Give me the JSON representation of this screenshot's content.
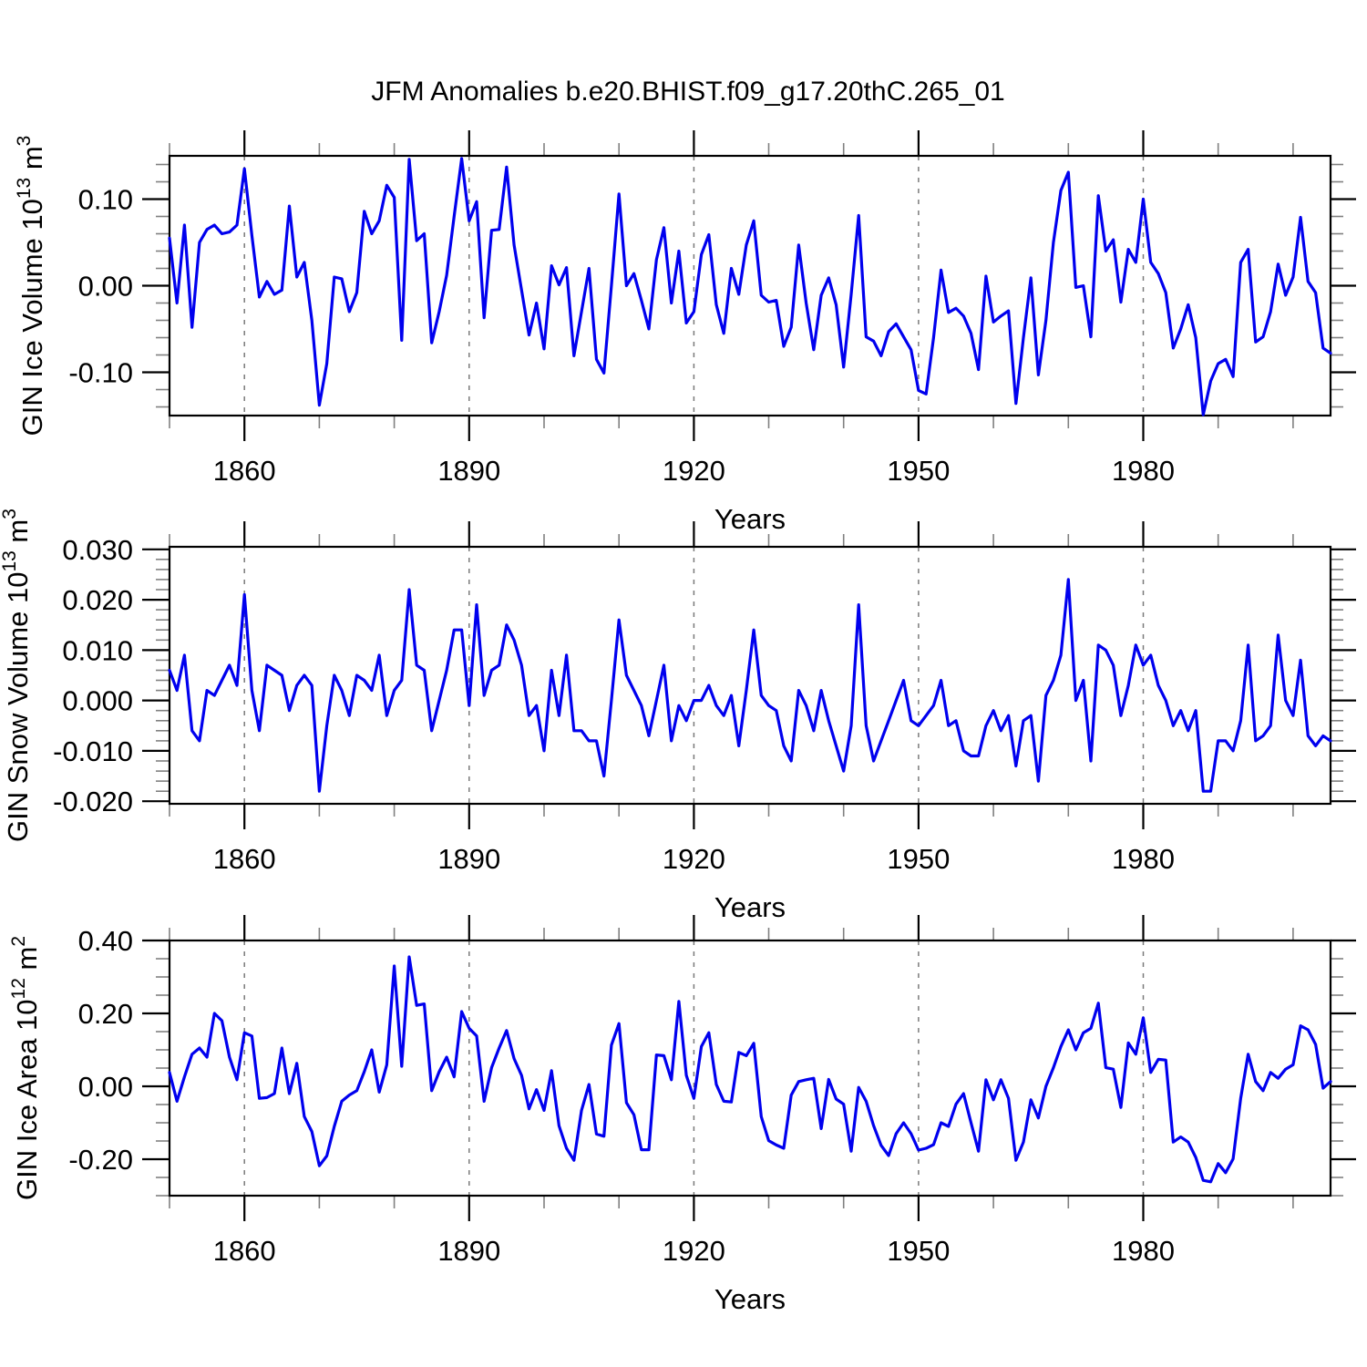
{
  "title": "JFM Anomalies b.e20.BHIST.f09_g17.20thC.265_01",
  "chart_data": [
    {
      "type": "line",
      "name": "gin-ice-volume",
      "ylabel": {
        "base": "GIN Ice Volume 10",
        "sup1": "13",
        "mid": " m",
        "sup2": "3"
      },
      "xlabel": "Years",
      "line_color": "#0000ee",
      "grid": "dashed-vertical-at-major-xticks",
      "legend": null,
      "xlim": [
        1850,
        2005
      ],
      "ylim": [
        -0.15,
        0.15
      ],
      "yticks": [
        0.1,
        0.0,
        -0.1
      ],
      "ytick_labels": [
        "0.10",
        "0.00",
        "-0.10"
      ],
      "yminor_step": 0.02,
      "xticks": [
        1860,
        1890,
        1920,
        1950,
        1980
      ],
      "xtick_labels": [
        "1860",
        "1890",
        "1920",
        "1950",
        "1980"
      ],
      "xminor_step": 10,
      "years": [
        1850,
        1851,
        1852,
        1853,
        1854,
        1855,
        1856,
        1857,
        1858,
        1859,
        1860,
        1861,
        1862,
        1863,
        1864,
        1865,
        1866,
        1867,
        1868,
        1869,
        1870,
        1871,
        1872,
        1873,
        1874,
        1875,
        1876,
        1877,
        1878,
        1879,
        1880,
        1881,
        1882,
        1883,
        1884,
        1885,
        1886,
        1887,
        1888,
        1889,
        1890,
        1891,
        1892,
        1893,
        1894,
        1895,
        1896,
        1897,
        1898,
        1899,
        1900,
        1901,
        1902,
        1903,
        1904,
        1905,
        1906,
        1907,
        1908,
        1909,
        1910,
        1911,
        1912,
        1913,
        1914,
        1915,
        1916,
        1917,
        1918,
        1919,
        1920,
        1921,
        1922,
        1923,
        1924,
        1925,
        1926,
        1927,
        1928,
        1929,
        1930,
        1931,
        1932,
        1933,
        1934,
        1935,
        1936,
        1937,
        1938,
        1939,
        1940,
        1941,
        1942,
        1943,
        1944,
        1945,
        1946,
        1947,
        1948,
        1949,
        1950,
        1951,
        1952,
        1953,
        1954,
        1955,
        1956,
        1957,
        1958,
        1959,
        1960,
        1961,
        1962,
        1963,
        1964,
        1965,
        1966,
        1967,
        1968,
        1969,
        1970,
        1971,
        1972,
        1973,
        1974,
        1975,
        1976,
        1977,
        1978,
        1979,
        1980,
        1981,
        1982,
        1983,
        1984,
        1985,
        1986,
        1987,
        1988,
        1989,
        1990,
        1991,
        1992,
        1993,
        1994,
        1995,
        1996,
        1997,
        1998,
        1999,
        2000,
        2001,
        2002,
        2003,
        2004,
        2005
      ],
      "values": [
        0.055,
        -0.02,
        0.07,
        -0.048,
        0.05,
        0.065,
        0.07,
        0.06,
        0.062,
        0.07,
        0.135,
        0.058,
        -0.013,
        0.005,
        -0.01,
        -0.005,
        0.092,
        0.01,
        0.027,
        -0.04,
        -0.138,
        -0.09,
        0.01,
        0.008,
        -0.03,
        -0.008,
        0.086,
        0.06,
        0.075,
        0.116,
        0.102,
        -0.063,
        0.146,
        0.052,
        0.06,
        -0.066,
        -0.03,
        0.012,
        0.08,
        0.147,
        0.075,
        0.097,
        -0.037,
        0.064,
        0.065,
        0.137,
        0.047,
        -0.005,
        -0.057,
        -0.02,
        -0.073,
        0.023,
        0.001,
        0.021,
        -0.081,
        -0.03,
        0.02,
        -0.085,
        -0.101,
        0.0,
        0.106,
        0.0,
        0.014,
        -0.017,
        -0.05,
        0.03,
        0.067,
        -0.02,
        0.04,
        -0.043,
        -0.03,
        0.036,
        0.059,
        -0.022,
        -0.055,
        0.02,
        -0.01,
        0.047,
        0.075,
        -0.011,
        -0.019,
        -0.017,
        -0.07,
        -0.048,
        0.047,
        -0.02,
        -0.074,
        -0.011,
        0.009,
        -0.022,
        -0.094,
        -0.01,
        0.081,
        -0.059,
        -0.064,
        -0.081,
        -0.053,
        -0.044,
        -0.059,
        -0.074,
        -0.121,
        -0.125,
        -0.06,
        0.018,
        -0.031,
        -0.026,
        -0.035,
        -0.055,
        -0.097,
        0.011,
        -0.042,
        -0.035,
        -0.029,
        -0.136,
        -0.06,
        0.009,
        -0.103,
        -0.04,
        0.05,
        0.11,
        0.131,
        -0.002,
        0.0,
        -0.059,
        0.104,
        0.04,
        0.053,
        -0.019,
        0.042,
        0.027,
        0.1,
        0.027,
        0.014,
        -0.008,
        -0.072,
        -0.05,
        -0.022,
        -0.06,
        -0.149,
        -0.11,
        -0.09,
        -0.085,
        -0.105,
        0.027,
        0.042,
        -0.065,
        -0.059,
        -0.03,
        0.025,
        -0.011,
        0.01,
        0.079,
        0.005,
        -0.008,
        -0.072,
        -0.078
      ]
    },
    {
      "type": "line",
      "name": "gin-snow-volume",
      "ylabel": {
        "base": "GIN Snow Volume 10",
        "sup1": "13",
        "mid": " m",
        "sup2": "3"
      },
      "xlabel": "Years",
      "line_color": "#0000ee",
      "grid": "dashed-vertical-at-major-xticks",
      "legend": null,
      "xlim": [
        1850,
        2005
      ],
      "ylim": [
        -0.0205,
        0.0305
      ],
      "yticks": [
        0.03,
        0.02,
        0.01,
        0.0,
        -0.01,
        -0.02
      ],
      "ytick_labels": [
        "0.030",
        "0.020",
        "0.010",
        "0.000",
        "-0.010",
        "-0.020"
      ],
      "yminor_step": 0.002,
      "xticks": [
        1860,
        1890,
        1920,
        1950,
        1980
      ],
      "xtick_labels": [
        "1860",
        "1890",
        "1920",
        "1950",
        "1980"
      ],
      "xminor_step": 10,
      "years": [
        1850,
        1851,
        1852,
        1853,
        1854,
        1855,
        1856,
        1857,
        1858,
        1859,
        1860,
        1861,
        1862,
        1863,
        1864,
        1865,
        1866,
        1867,
        1868,
        1869,
        1870,
        1871,
        1872,
        1873,
        1874,
        1875,
        1876,
        1877,
        1878,
        1879,
        1880,
        1881,
        1882,
        1883,
        1884,
        1885,
        1886,
        1887,
        1888,
        1889,
        1890,
        1891,
        1892,
        1893,
        1894,
        1895,
        1896,
        1897,
        1898,
        1899,
        1900,
        1901,
        1902,
        1903,
        1904,
        1905,
        1906,
        1907,
        1908,
        1909,
        1910,
        1911,
        1912,
        1913,
        1914,
        1915,
        1916,
        1917,
        1918,
        1919,
        1920,
        1921,
        1922,
        1923,
        1924,
        1925,
        1926,
        1927,
        1928,
        1929,
        1930,
        1931,
        1932,
        1933,
        1934,
        1935,
        1936,
        1937,
        1938,
        1939,
        1940,
        1941,
        1942,
        1943,
        1944,
        1945,
        1946,
        1947,
        1948,
        1949,
        1950,
        1951,
        1952,
        1953,
        1954,
        1955,
        1956,
        1957,
        1958,
        1959,
        1960,
        1961,
        1962,
        1963,
        1964,
        1965,
        1966,
        1967,
        1968,
        1969,
        1970,
        1971,
        1972,
        1973,
        1974,
        1975,
        1976,
        1977,
        1978,
        1979,
        1980,
        1981,
        1982,
        1983,
        1984,
        1985,
        1986,
        1987,
        1988,
        1989,
        1990,
        1991,
        1992,
        1993,
        1994,
        1995,
        1996,
        1997,
        1998,
        1999,
        2000,
        2001,
        2002,
        2003,
        2004,
        2005
      ],
      "values": [
        0.006,
        0.002,
        0.009,
        -0.006,
        -0.008,
        0.002,
        0.001,
        0.004,
        0.007,
        0.003,
        0.021,
        0.002,
        -0.006,
        0.007,
        0.006,
        0.005,
        -0.002,
        0.003,
        0.005,
        0.003,
        -0.018,
        -0.005,
        0.005,
        0.002,
        -0.003,
        0.005,
        0.004,
        0.002,
        0.009,
        -0.003,
        0.002,
        0.004,
        0.022,
        0.007,
        0.006,
        -0.006,
        0.0,
        0.006,
        0.014,
        0.014,
        -0.001,
        0.019,
        0.001,
        0.006,
        0.007,
        0.015,
        0.012,
        0.007,
        -0.003,
        -0.001,
        -0.01,
        0.006,
        -0.003,
        0.009,
        -0.006,
        -0.006,
        -0.008,
        -0.008,
        -0.015,
        0.0,
        0.016,
        0.005,
        0.002,
        -0.001,
        -0.007,
        0.0,
        0.007,
        -0.008,
        -0.001,
        -0.004,
        0.0,
        0.0,
        0.003,
        -0.001,
        -0.003,
        0.001,
        -0.009,
        0.002,
        0.014,
        0.001,
        -0.001,
        -0.002,
        -0.009,
        -0.012,
        0.002,
        -0.001,
        -0.006,
        0.002,
        -0.004,
        -0.009,
        -0.014,
        -0.005,
        0.019,
        -0.005,
        -0.012,
        -0.008,
        -0.004,
        0.0,
        0.004,
        -0.004,
        -0.005,
        -0.003,
        -0.001,
        0.004,
        -0.005,
        -0.004,
        -0.01,
        -0.011,
        -0.011,
        -0.005,
        -0.002,
        -0.006,
        -0.003,
        -0.013,
        -0.004,
        -0.003,
        -0.016,
        0.001,
        0.004,
        0.009,
        0.024,
        0.0,
        0.004,
        -0.012,
        0.011,
        0.01,
        0.007,
        -0.003,
        0.003,
        0.011,
        0.007,
        0.009,
        0.003,
        0.0,
        -0.005,
        -0.002,
        -0.006,
        -0.002,
        -0.018,
        -0.018,
        -0.008,
        -0.008,
        -0.01,
        -0.004,
        0.011,
        -0.008,
        -0.007,
        -0.005,
        0.013,
        0.0,
        -0.003,
        0.008,
        -0.007,
        -0.009,
        -0.007,
        -0.008
      ]
    },
    {
      "type": "line",
      "name": "gin-ice-area",
      "ylabel": {
        "base": "GIN Ice Area 10",
        "sup1": "12",
        "mid": " m",
        "sup2": "2"
      },
      "xlabel": "Years",
      "line_color": "#0000ee",
      "grid": "dashed-vertical-at-major-xticks",
      "legend": null,
      "xlim": [
        1850,
        2005
      ],
      "ylim": [
        -0.3,
        0.4
      ],
      "yticks": [
        0.4,
        0.2,
        0.0,
        -0.2
      ],
      "ytick_labels": [
        "0.40",
        "0.20",
        "0.00",
        "-0.20"
      ],
      "yminor_step": 0.05,
      "xticks": [
        1860,
        1890,
        1920,
        1950,
        1980
      ],
      "xtick_labels": [
        "1860",
        "1890",
        "1920",
        "1950",
        "1980"
      ],
      "xminor_step": 10,
      "years": [
        1850,
        1851,
        1852,
        1853,
        1854,
        1855,
        1856,
        1857,
        1858,
        1859,
        1860,
        1861,
        1862,
        1863,
        1864,
        1865,
        1866,
        1867,
        1868,
        1869,
        1870,
        1871,
        1872,
        1873,
        1874,
        1875,
        1876,
        1877,
        1878,
        1879,
        1880,
        1881,
        1882,
        1883,
        1884,
        1885,
        1886,
        1887,
        1888,
        1889,
        1890,
        1891,
        1892,
        1893,
        1894,
        1895,
        1896,
        1897,
        1898,
        1899,
        1900,
        1901,
        1902,
        1903,
        1904,
        1905,
        1906,
        1907,
        1908,
        1909,
        1910,
        1911,
        1912,
        1913,
        1914,
        1915,
        1916,
        1917,
        1918,
        1919,
        1920,
        1921,
        1922,
        1923,
        1924,
        1925,
        1926,
        1927,
        1928,
        1929,
        1930,
        1931,
        1932,
        1933,
        1934,
        1935,
        1936,
        1937,
        1938,
        1939,
        1940,
        1941,
        1942,
        1943,
        1944,
        1945,
        1946,
        1947,
        1948,
        1949,
        1950,
        1951,
        1952,
        1953,
        1954,
        1955,
        1956,
        1957,
        1958,
        1959,
        1960,
        1961,
        1962,
        1963,
        1964,
        1965,
        1966,
        1967,
        1968,
        1969,
        1970,
        1971,
        1972,
        1973,
        1974,
        1975,
        1976,
        1977,
        1978,
        1979,
        1980,
        1981,
        1982,
        1983,
        1984,
        1985,
        1986,
        1987,
        1988,
        1989,
        1990,
        1991,
        1992,
        1993,
        1994,
        1995,
        1996,
        1997,
        1998,
        1999,
        2000,
        2001,
        2002,
        2003,
        2004,
        2005
      ],
      "values": [
        0.038,
        -0.041,
        0.026,
        0.088,
        0.105,
        0.08,
        0.2,
        0.18,
        0.08,
        0.018,
        0.147,
        0.138,
        -0.033,
        -0.031,
        -0.02,
        0.105,
        -0.02,
        0.063,
        -0.083,
        -0.124,
        -0.218,
        -0.191,
        -0.11,
        -0.041,
        -0.024,
        -0.012,
        0.04,
        0.1,
        -0.016,
        0.059,
        0.33,
        0.055,
        0.355,
        0.222,
        0.226,
        -0.012,
        0.04,
        0.08,
        0.026,
        0.205,
        0.159,
        0.138,
        -0.041,
        0.051,
        0.105,
        0.153,
        0.076,
        0.03,
        -0.062,
        -0.009,
        -0.066,
        0.043,
        -0.108,
        -0.17,
        -0.203,
        -0.066,
        0.005,
        -0.131,
        -0.137,
        0.113,
        0.172,
        -0.045,
        -0.078,
        -0.174,
        -0.174,
        0.086,
        0.084,
        0.018,
        0.233,
        0.03,
        -0.033,
        0.109,
        0.147,
        0.005,
        -0.041,
        -0.043,
        0.093,
        0.084,
        0.118,
        -0.083,
        -0.149,
        -0.161,
        -0.17,
        -0.024,
        0.013,
        0.018,
        0.022,
        -0.116,
        0.019,
        -0.035,
        -0.049,
        -0.178,
        -0.003,
        -0.041,
        -0.108,
        -0.162,
        -0.19,
        -0.13,
        -0.1,
        -0.13,
        -0.175,
        -0.17,
        -0.16,
        -0.1,
        -0.11,
        -0.049,
        -0.02,
        -0.1,
        -0.178,
        0.018,
        -0.037,
        0.018,
        -0.033,
        -0.203,
        -0.153,
        -0.037,
        -0.087,
        0.0,
        0.051,
        0.109,
        0.155,
        0.1,
        0.147,
        0.159,
        0.228,
        0.051,
        0.047,
        -0.058,
        0.119,
        0.088,
        0.188,
        0.038,
        0.074,
        0.072,
        -0.153,
        -0.139,
        -0.153,
        -0.195,
        -0.258,
        -0.262,
        -0.212,
        -0.237,
        -0.199,
        -0.033,
        0.088,
        0.013,
        -0.012,
        0.038,
        0.022,
        0.047,
        0.059,
        0.166,
        0.155,
        0.115,
        -0.005,
        0.013
      ]
    }
  ]
}
